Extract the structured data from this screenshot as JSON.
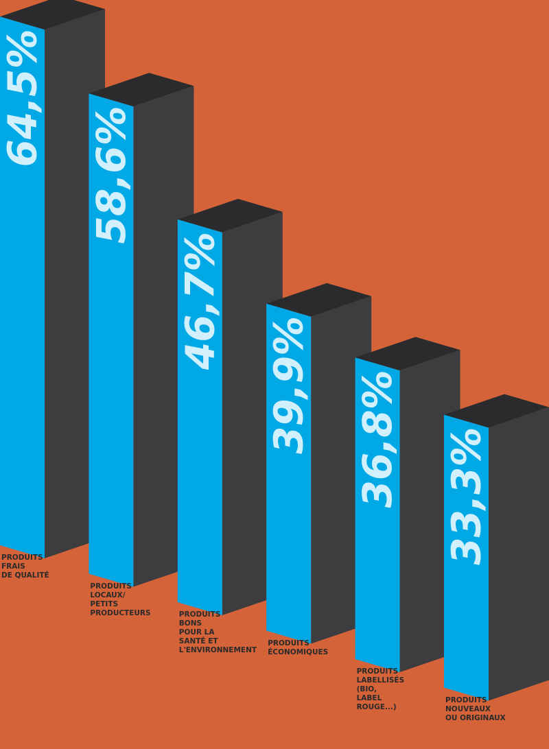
{
  "chart_data": {
    "type": "bar3d",
    "categories": [
      "PRODUITS\nFRAIS\nDE QUALITÉ",
      "PRODUITS\nLOCAUX/\nPETITS\nPRODUCTEURS",
      "PRODUITS\nBONS\nPOUR LA\nSANTÉ ET\nL'ENVIRONNEMENT",
      "PRODUITS\nÉCONOMIQUES",
      "PRODUITS\nLABELLISÉS\n(BIO,\nLABEL\nROUGE...)",
      "PRODUITS\nNOUVEAUX\nOU ORIGINAUX"
    ],
    "values": [
      64.5,
      58.6,
      46.7,
      39.9,
      36.8,
      33.3
    ],
    "value_labels": [
      "64,5%",
      "58,6%",
      "46,7%",
      "39,9%",
      "36,8%",
      "33,3%"
    ],
    "color": "#00a9e6"
  }
}
